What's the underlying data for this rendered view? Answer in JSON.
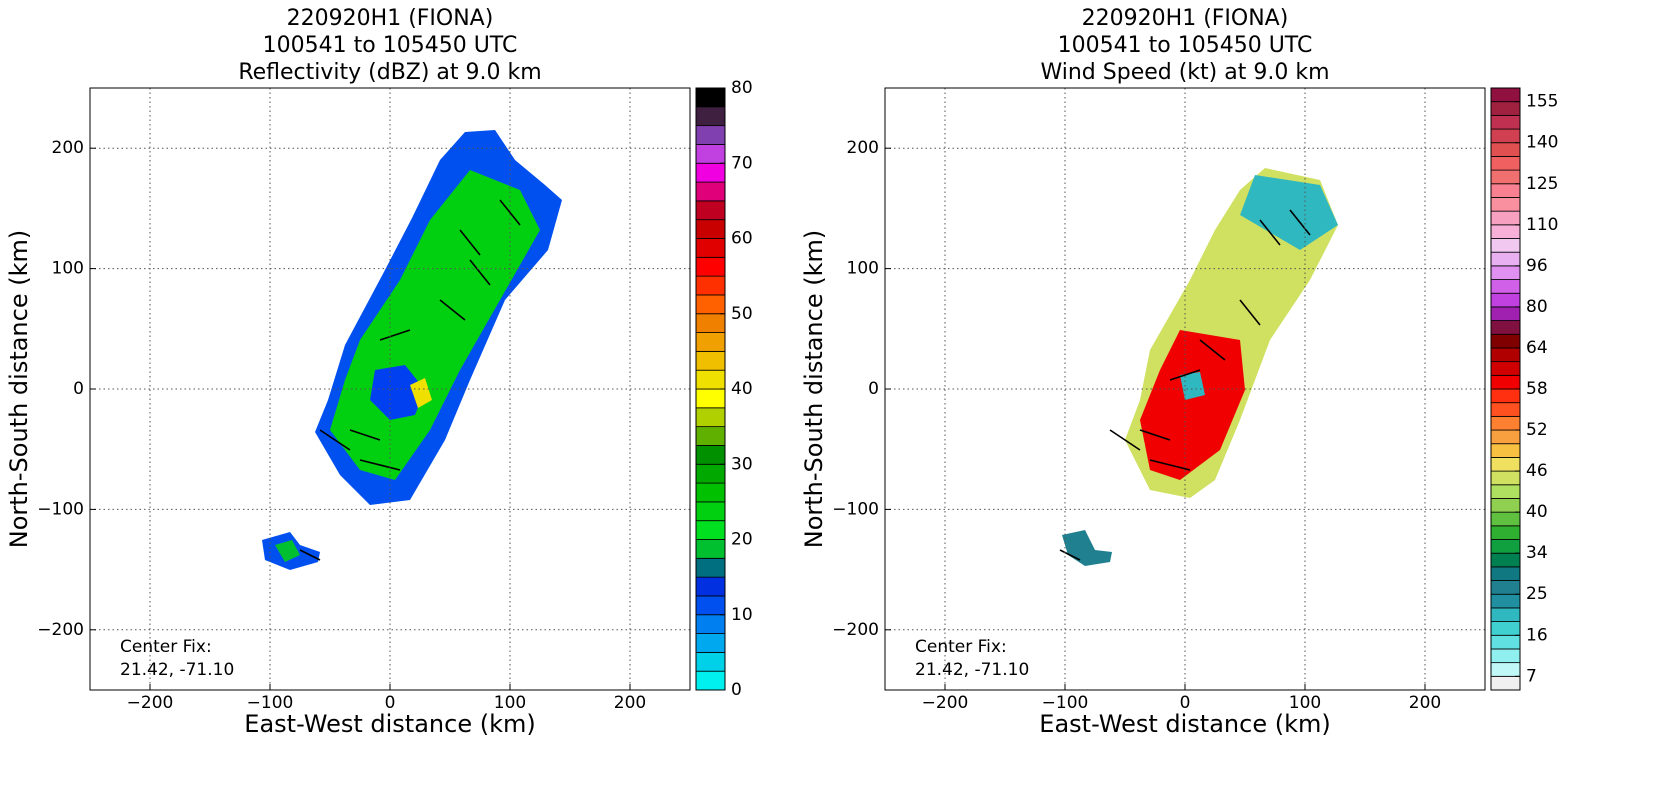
{
  "chart_data": [
    {
      "type": "map",
      "title": [
        "220920H1 (FIONA)",
        "100541 to 105450 UTC",
        "Reflectivity (dBZ) at 9.0 km"
      ],
      "xlabel": "East-West distance (km)",
      "ylabel": "North-South distance (km)",
      "xlim": [
        -250,
        250
      ],
      "ylim": [
        -250,
        250
      ],
      "xticks": [
        {
          "value": -200,
          "label": "−200"
        },
        {
          "value": -100,
          "label": "−100"
        },
        0,
        100,
        200
      ],
      "yticks": [
        {
          "value": -200,
          "label": "−200"
        },
        {
          "value": -100,
          "label": "−100"
        },
        0,
        100,
        200
      ],
      "grid": true,
      "annotation": [
        "Center Fix:",
        "21.42, -71.10"
      ],
      "colorbar": {
        "ticks": [
          0,
          10,
          20,
          30,
          40,
          50,
          60,
          70,
          80
        ],
        "colors": [
          "#00f0f0",
          "#00d0e8",
          "#00a8f0",
          "#0080f0",
          "#0050f0",
          "#0030e0",
          "#007080",
          "#00c030",
          "#00e020",
          "#00d010",
          "#00c000",
          "#00a800",
          "#009000",
          "#60b000",
          "#b0d000",
          "#ffff00",
          "#f0e000",
          "#f0c000",
          "#f0a000",
          "#f08000",
          "#ff6000",
          "#ff3000",
          "#ff0000",
          "#e00000",
          "#c80000",
          "#c00020",
          "#e0007a",
          "#f000e0",
          "#c040e0",
          "#8040b0",
          "#402040",
          "#000000"
        ]
      }
    },
    {
      "type": "map",
      "title": [
        "220920H1 (FIONA)",
        "100541 to 105450 UTC",
        "Wind Speed (kt) at 9.0 km"
      ],
      "xlabel": "East-West distance (km)",
      "ylabel": "North-South distance (km)",
      "xlim": [
        -250,
        250
      ],
      "ylim": [
        -250,
        250
      ],
      "xticks": [
        {
          "value": -200,
          "label": "−200"
        },
        {
          "value": -100,
          "label": "−100"
        },
        0,
        100,
        200
      ],
      "yticks": [
        {
          "value": -200,
          "label": "−200"
        },
        {
          "value": -100,
          "label": "−100"
        },
        0,
        100,
        200
      ],
      "grid": true,
      "annotation": [
        "Center Fix:",
        "21.42, -71.10"
      ],
      "colorbar": {
        "ticks": [
          7,
          16,
          25,
          34,
          40,
          46,
          52,
          58,
          64,
          80,
          96,
          110,
          125,
          140,
          155
        ],
        "colors": [
          "#f0f0f0",
          "#c0f8f8",
          "#90f0f0",
          "#60e0e0",
          "#40d0d0",
          "#30b8c0",
          "#2090a0",
          "#208090",
          "#107880",
          "#008050",
          "#10a040",
          "#30b030",
          "#60c040",
          "#90d050",
          "#b0e060",
          "#d0e060",
          "#f0e060",
          "#f8c040",
          "#f8a040",
          "#ff8030",
          "#ff5020",
          "#ff3010",
          "#f00000",
          "#d00000",
          "#b00000",
          "#800000",
          "#801040",
          "#a020b0",
          "#c040e0",
          "#d060e8",
          "#e090f0",
          "#e8b0f0",
          "#f0c8f0",
          "#f8b0d8",
          "#f8a0c0",
          "#f890a0",
          "#f88090",
          "#f07070",
          "#f06060",
          "#e05050",
          "#d04050",
          "#c03050",
          "#a02040",
          "#901040"
        ]
      }
    }
  ]
}
